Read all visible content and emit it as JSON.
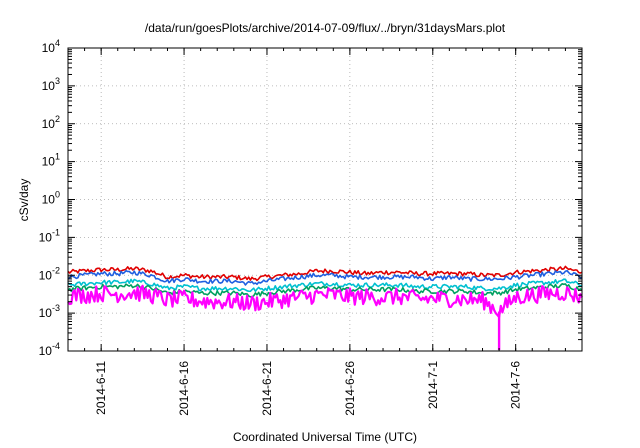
{
  "chart_data": {
    "type": "line",
    "title": "/data/run/goesPlots/archive/2014-07-09/flux/../bryn/31daysMars.plot",
    "xlabel": "Coordinated Universal Time (UTC)",
    "ylabel": "cSv/day",
    "x_scale": "time",
    "y_scale": "log",
    "xlim": [
      "2014-06-09",
      "2014-07-10"
    ],
    "ylim": [
      0.0001,
      10000
    ],
    "grid": true,
    "legend": "none",
    "x_ticks": [
      "2014-6-11",
      "2014-6-16",
      "2014-6-21",
      "2014-6-26",
      "2014-7-1",
      "2014-7-6"
    ],
    "y_ticks": [
      {
        "base": "10",
        "exp": "-4",
        "value": 0.0001
      },
      {
        "base": "10",
        "exp": "-3",
        "value": 0.001
      },
      {
        "base": "10",
        "exp": "-2",
        "value": 0.01
      },
      {
        "base": "10",
        "exp": "-1",
        "value": 0.1
      },
      {
        "base": "10",
        "exp": "0",
        "value": 1
      },
      {
        "base": "10",
        "exp": "1",
        "value": 10
      },
      {
        "base": "10",
        "exp": "2",
        "value": 100
      },
      {
        "base": "10",
        "exp": "3",
        "value": 1000
      },
      {
        "base": "10",
        "exp": "4",
        "value": 10000
      }
    ],
    "series": [
      {
        "color": "#e00000",
        "x": [
          "2014-06-09",
          "2014-06-10",
          "2014-06-11",
          "2014-06-12",
          "2014-06-13",
          "2014-06-14",
          "2014-06-15",
          "2014-06-16",
          "2014-06-17",
          "2014-06-18",
          "2014-06-19",
          "2014-06-20",
          "2014-06-21",
          "2014-06-22",
          "2014-06-23",
          "2014-06-24",
          "2014-06-25",
          "2014-06-26",
          "2014-06-27",
          "2014-06-28",
          "2014-06-29",
          "2014-06-30",
          "2014-07-01",
          "2014-07-02",
          "2014-07-03",
          "2014-07-04",
          "2014-07-05",
          "2014-07-06",
          "2014-07-07",
          "2014-07-08",
          "2014-07-09",
          "2014-07-10"
        ],
        "values": [
          0.012,
          0.013,
          0.014,
          0.014,
          0.015,
          0.013,
          0.009,
          0.01,
          0.009,
          0.009,
          0.009,
          0.008,
          0.009,
          0.01,
          0.011,
          0.013,
          0.013,
          0.012,
          0.011,
          0.012,
          0.012,
          0.011,
          0.011,
          0.011,
          0.011,
          0.01,
          0.01,
          0.012,
          0.013,
          0.014,
          0.015,
          0.012
        ]
      },
      {
        "color": "#1f5fe0",
        "x": [
          "2014-06-09",
          "2014-06-10",
          "2014-06-11",
          "2014-06-12",
          "2014-06-13",
          "2014-06-14",
          "2014-06-15",
          "2014-06-16",
          "2014-06-17",
          "2014-06-18",
          "2014-06-19",
          "2014-06-20",
          "2014-06-21",
          "2014-06-22",
          "2014-06-23",
          "2014-06-24",
          "2014-06-25",
          "2014-06-26",
          "2014-06-27",
          "2014-06-28",
          "2014-06-29",
          "2014-06-30",
          "2014-07-01",
          "2014-07-02",
          "2014-07-03",
          "2014-07-04",
          "2014-07-05",
          "2014-07-06",
          "2014-07-07",
          "2014-07-08",
          "2014-07-09",
          "2014-07-10"
        ],
        "values": [
          0.009,
          0.01,
          0.011,
          0.011,
          0.012,
          0.01,
          0.007,
          0.008,
          0.007,
          0.007,
          0.007,
          0.006,
          0.007,
          0.008,
          0.009,
          0.01,
          0.01,
          0.009,
          0.009,
          0.009,
          0.009,
          0.009,
          0.008,
          0.009,
          0.008,
          0.008,
          0.008,
          0.009,
          0.01,
          0.011,
          0.012,
          0.009
        ]
      },
      {
        "color": "#00c0d0",
        "x": [
          "2014-06-09",
          "2014-06-10",
          "2014-06-11",
          "2014-06-12",
          "2014-06-13",
          "2014-06-14",
          "2014-06-15",
          "2014-06-16",
          "2014-06-17",
          "2014-06-18",
          "2014-06-19",
          "2014-06-20",
          "2014-06-21",
          "2014-06-22",
          "2014-06-23",
          "2014-06-24",
          "2014-06-25",
          "2014-06-26",
          "2014-06-27",
          "2014-06-28",
          "2014-06-29",
          "2014-06-30",
          "2014-07-01",
          "2014-07-02",
          "2014-07-03",
          "2014-07-04",
          "2014-07-05",
          "2014-07-06",
          "2014-07-07",
          "2014-07-08",
          "2014-07-09",
          "2014-07-10"
        ],
        "values": [
          0.0055,
          0.006,
          0.0065,
          0.0065,
          0.007,
          0.006,
          0.0045,
          0.005,
          0.0045,
          0.0045,
          0.0045,
          0.004,
          0.0045,
          0.005,
          0.0055,
          0.006,
          0.006,
          0.0055,
          0.0055,
          0.0055,
          0.0055,
          0.005,
          0.005,
          0.005,
          0.005,
          0.0045,
          0.0045,
          0.0055,
          0.006,
          0.0065,
          0.007,
          0.0055
        ]
      },
      {
        "color": "#00a060",
        "x": [
          "2014-06-09",
          "2014-06-10",
          "2014-06-11",
          "2014-06-12",
          "2014-06-13",
          "2014-06-14",
          "2014-06-15",
          "2014-06-16",
          "2014-06-17",
          "2014-06-18",
          "2014-06-19",
          "2014-06-20",
          "2014-06-21",
          "2014-06-22",
          "2014-06-23",
          "2014-06-24",
          "2014-06-25",
          "2014-06-26",
          "2014-06-27",
          "2014-06-28",
          "2014-06-29",
          "2014-06-30",
          "2014-07-01",
          "2014-07-02",
          "2014-07-03",
          "2014-07-04",
          "2014-07-05",
          "2014-07-06",
          "2014-07-07",
          "2014-07-08",
          "2014-07-09",
          "2014-07-10"
        ],
        "values": [
          0.0042,
          0.0046,
          0.005,
          0.005,
          0.0054,
          0.0046,
          0.0034,
          0.0038,
          0.0034,
          0.0034,
          0.0034,
          0.003,
          0.0034,
          0.0038,
          0.0042,
          0.0046,
          0.0046,
          0.0042,
          0.0042,
          0.0042,
          0.0042,
          0.0038,
          0.0038,
          0.0038,
          0.0038,
          0.0034,
          0.0034,
          0.0042,
          0.0046,
          0.005,
          0.0054,
          0.0042
        ]
      },
      {
        "color": "#ff00ff",
        "x": [
          "2014-06-09",
          "2014-06-10",
          "2014-06-11",
          "2014-06-12",
          "2014-06-13",
          "2014-06-14",
          "2014-06-15",
          "2014-06-16",
          "2014-06-17",
          "2014-06-18",
          "2014-06-19",
          "2014-06-20",
          "2014-06-21",
          "2014-06-22",
          "2014-06-23",
          "2014-06-24",
          "2014-06-25",
          "2014-06-26",
          "2014-06-27",
          "2014-06-28",
          "2014-06-29",
          "2014-06-30",
          "2014-07-01",
          "2014-07-02",
          "2014-07-03",
          "2014-07-04",
          "2014-07-05",
          "2014-07-06",
          "2014-07-07",
          "2014-07-08",
          "2014-07-09",
          "2014-07-10"
        ],
        "values": [
          0.0028,
          0.003,
          0.0033,
          0.0032,
          0.0035,
          0.003,
          0.0022,
          0.0024,
          0.0021,
          0.002,
          0.002,
          0.0018,
          0.002,
          0.0023,
          0.0026,
          0.003,
          0.003,
          0.0027,
          0.0027,
          0.0026,
          0.0027,
          0.0024,
          0.0024,
          0.0024,
          0.0023,
          0.0022,
          0.0011,
          0.0026,
          0.003,
          0.0033,
          0.0035,
          0.0026
        ]
      }
    ],
    "spikes": [
      {
        "series_color": "#ff00ff",
        "x": "2014-07-05",
        "y": 0.0001
      }
    ]
  }
}
